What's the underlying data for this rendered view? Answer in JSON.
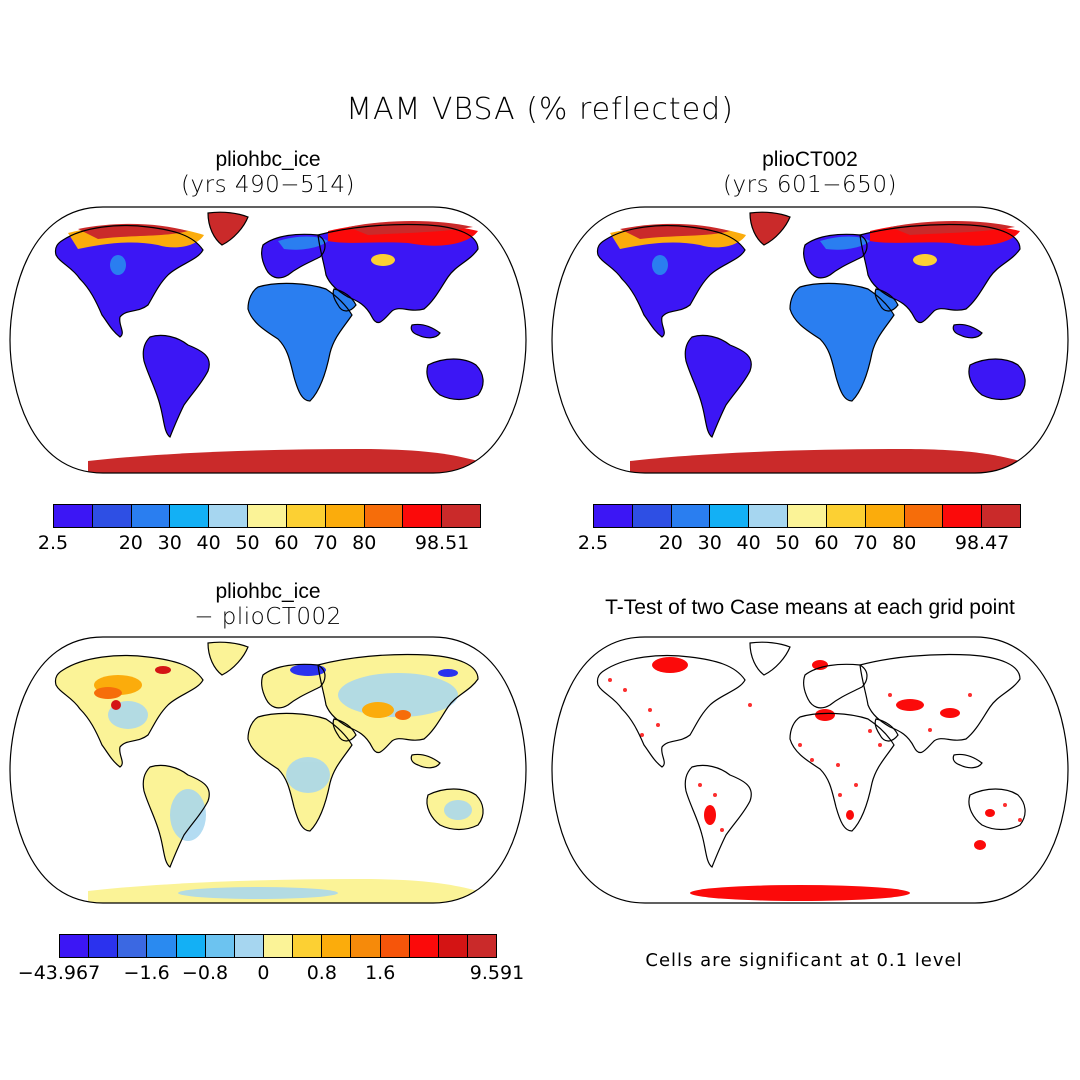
{
  "figure": {
    "title": "MAM VBSA (% reflected)",
    "footnote": "Cells are significant at 0.1 level"
  },
  "panels": [
    {
      "id": "top-left",
      "title": "pliohbc_ice",
      "subtitle": "(yrs 490−514)",
      "colorbar": {
        "colors": [
          "#3c16f5",
          "#2e4fe4",
          "#2a7ef0",
          "#13b0f5",
          "#a6d6f0",
          "#fbf397",
          "#fcd033",
          "#fbac0c",
          "#f66d0a",
          "#fb0a0a",
          "#ca2a2a"
        ],
        "labels": [
          "2.5",
          "20",
          "30",
          "40",
          "50",
          "60",
          "70",
          "80",
          "98.51"
        ],
        "label_positions": [
          0,
          2,
          3,
          4,
          5,
          6,
          7,
          8,
          10
        ]
      }
    },
    {
      "id": "top-right",
      "title": "plioCT002",
      "subtitle": "(yrs 601−650)",
      "colorbar": {
        "colors": [
          "#3c16f5",
          "#2e4fe4",
          "#2a7ef0",
          "#13b0f5",
          "#a6d6f0",
          "#fbf397",
          "#fcd033",
          "#fbac0c",
          "#f66d0a",
          "#fb0a0a",
          "#ca2a2a"
        ],
        "labels": [
          "2.5",
          "20",
          "30",
          "40",
          "50",
          "60",
          "70",
          "80",
          "98.47"
        ],
        "label_positions": [
          0,
          2,
          3,
          4,
          5,
          6,
          7,
          8,
          10
        ]
      }
    },
    {
      "id": "bottom-left",
      "title": "pliohbc_ice",
      "subtitle": "− plioCT002",
      "colorbar": {
        "colors": [
          "#3c16f5",
          "#2b32ee",
          "#3b68e2",
          "#2a8af0",
          "#13b0f5",
          "#6cc3f0",
          "#a6d6f0",
          "#fbf397",
          "#fcd033",
          "#fbac0c",
          "#f68a0a",
          "#f6550a",
          "#fb0a0a",
          "#d41414",
          "#ca2a2a"
        ],
        "labels": [
          "−43.967",
          "−1.6",
          "−0.8",
          "0",
          "0.8",
          "1.6",
          "9.591"
        ],
        "label_positions": [
          0,
          3,
          5,
          7,
          9,
          11,
          15
        ]
      }
    },
    {
      "id": "bottom-right",
      "title": "T-Test of two Case means at each grid point"
    }
  ]
}
